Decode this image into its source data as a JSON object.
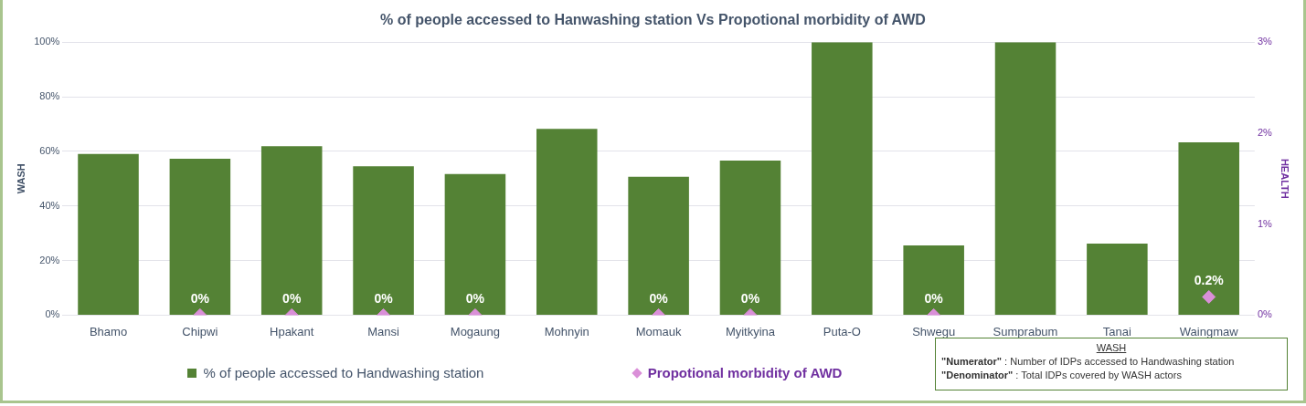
{
  "chart_data": {
    "type": "bar",
    "title": "% of people accessed to Hanwashing station Vs Propotional morbidity of AWD",
    "categories": [
      "Bhamo",
      "Chipwi",
      "Hpakant",
      "Mansi",
      "Mogaung",
      "Mohnyin",
      "Momauk",
      "Myitkyina",
      "Puta-O",
      "Shwegu",
      "Sumprabum",
      "Tanai",
      "Waingmaw"
    ],
    "series": [
      {
        "name": "% of people accessed to Handwashing station",
        "color": "#548235",
        "values": [
          59,
          57.3,
          61.9,
          54.5,
          51.7,
          68.2,
          50.7,
          56.6,
          100,
          25.5,
          100,
          26.2,
          63.3
        ]
      },
      {
        "name": "Propotional morbidity of AWD",
        "type": "scatter",
        "axis": "y2",
        "color": "#da8fd8",
        "marker": "diamond",
        "values": [
          null,
          0,
          0,
          0,
          0,
          null,
          0,
          0,
          null,
          0,
          null,
          null,
          0.2
        ],
        "value_labels": [
          null,
          "0%",
          "0%",
          "0%",
          "0%",
          null,
          "0%",
          "0%",
          null,
          "0%",
          null,
          null,
          "0.2%"
        ]
      }
    ],
    "ylabel": "WASH",
    "y2label": "HEALTH",
    "ylim": [
      0,
      100
    ],
    "yticks": [
      {
        "value": 0,
        "label": "0%"
      },
      {
        "value": 20,
        "label": "20%"
      },
      {
        "value": 40,
        "label": "40%"
      },
      {
        "value": 60,
        "label": "60%"
      },
      {
        "value": 80,
        "label": "80%"
      },
      {
        "value": 100,
        "label": "100%"
      }
    ],
    "y2lim": [
      0,
      3
    ],
    "y2ticks": [
      {
        "value": 0,
        "label": "0%"
      },
      {
        "value": 1,
        "label": "1%"
      },
      {
        "value": 2,
        "label": "2%"
      },
      {
        "value": 3,
        "label": "3%"
      }
    ],
    "grid": "y",
    "legend": "bottom",
    "annotations": [
      "WASH",
      "\"Numerator\" : Number of IDPs accessed to Handwashing station",
      "\"Denominator\" : Total IDPs covered by WASH actors"
    ]
  }
}
